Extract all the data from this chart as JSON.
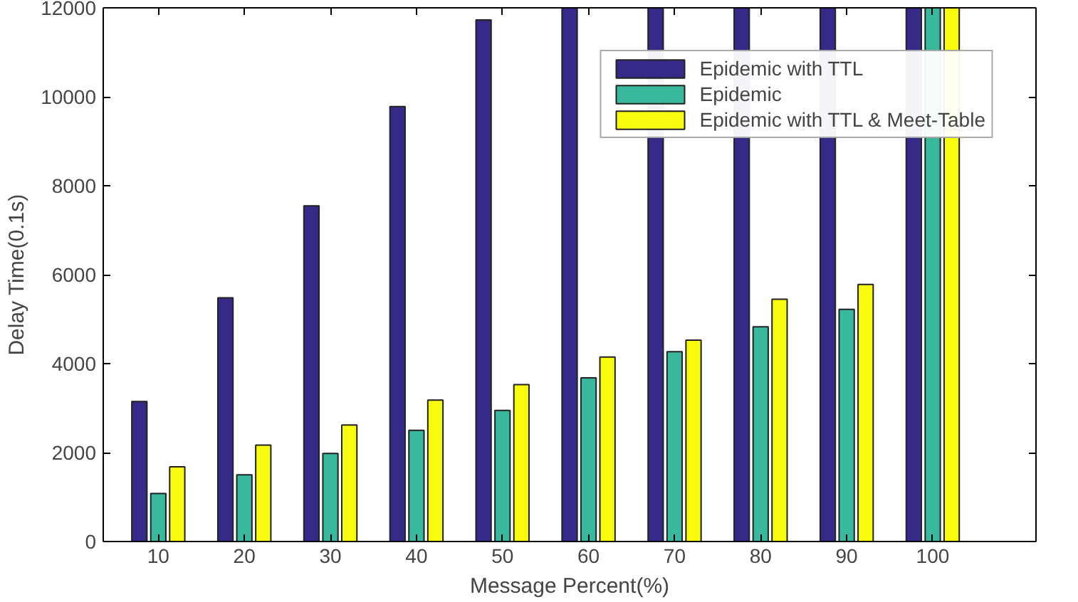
{
  "chart_data": {
    "type": "bar",
    "xlabel": "Message Percent(%)",
    "ylabel": "Delay Time(0.1s)",
    "categories": [
      "10",
      "20",
      "30",
      "40",
      "50",
      "60",
      "70",
      "80",
      "90",
      "100"
    ],
    "series": [
      {
        "name": "Epidemic with TTL",
        "color": "#352a87",
        "values": [
          3150,
          5480,
          7550,
          9780,
          11730,
          12000,
          12000,
          12000,
          12000,
          12000
        ]
      },
      {
        "name": "Epidemic",
        "color": "#38b99e",
        "values": [
          1080,
          1500,
          1980,
          2500,
          2950,
          3680,
          4270,
          4830,
          5220,
          12000
        ]
      },
      {
        "name": "Epidemic with TTL & Meet-Table",
        "color": "#f9fb0e",
        "values": [
          1680,
          2170,
          2620,
          3180,
          3530,
          4150,
          4530,
          5450,
          5780,
          12000
        ]
      }
    ],
    "ylim": [
      0,
      12000
    ],
    "yticks": [
      0,
      2000,
      4000,
      6000,
      8000,
      10000,
      12000
    ],
    "grid": false,
    "legend": "top right"
  }
}
